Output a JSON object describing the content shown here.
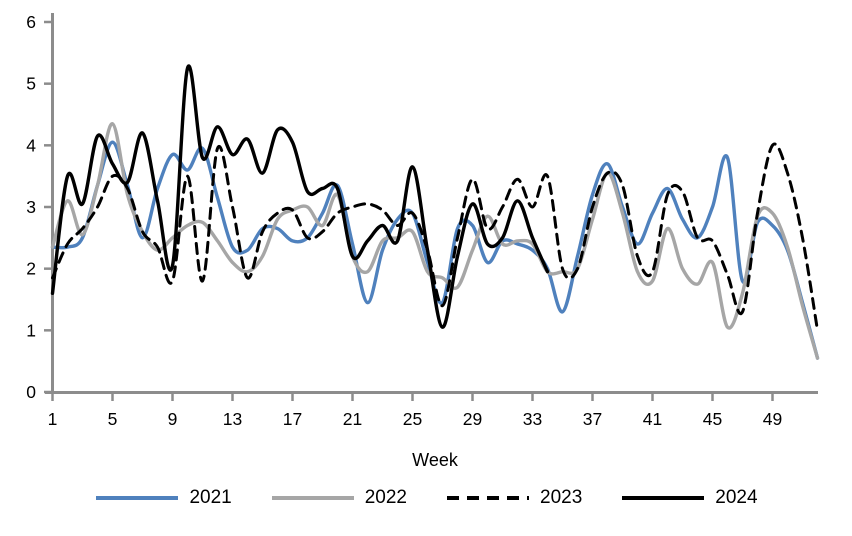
{
  "chart_data": {
    "type": "line",
    "title": "",
    "xlabel": "Week",
    "ylabel": "",
    "xlim": [
      1,
      52
    ],
    "ylim": [
      0,
      6
    ],
    "x_ticks": [
      1,
      5,
      9,
      13,
      17,
      21,
      25,
      29,
      33,
      37,
      41,
      45,
      49
    ],
    "y_ticks": [
      0,
      1,
      2,
      3,
      4,
      5,
      6
    ],
    "grid": false,
    "smoothed": true,
    "legend_position": "bottom",
    "axis_color": "#8c8c8c",
    "series": [
      {
        "name": "2021",
        "color": "#4f81bd",
        "style": "solid",
        "start_week": 1,
        "values": [
          2.35,
          2.35,
          2.5,
          3.35,
          4.05,
          3.35,
          2.5,
          3.3,
          3.85,
          3.6,
          3.95,
          3.15,
          2.35,
          2.3,
          2.65,
          2.65,
          2.45,
          2.5,
          2.9,
          3.35,
          2.4,
          1.45,
          2.3,
          2.8,
          2.9,
          2.1,
          1.45,
          2.65,
          2.7,
          2.1,
          2.45,
          2.4,
          2.3,
          2.0,
          1.3,
          2.2,
          3.2,
          3.7,
          3.0,
          2.4,
          2.9,
          3.3,
          2.8,
          2.5,
          3.0,
          3.8,
          1.8,
          2.75,
          2.7,
          2.3,
          1.45,
          0.55
        ]
      },
      {
        "name": "2022",
        "color": "#a6a6a6",
        "style": "solid",
        "start_week": 1,
        "values": [
          2.35,
          3.1,
          2.55,
          3.35,
          4.35,
          3.2,
          2.6,
          2.3,
          2.5,
          2.7,
          2.75,
          2.45,
          2.1,
          1.95,
          2.2,
          2.8,
          2.95,
          3.0,
          2.7,
          3.2,
          2.2,
          1.95,
          2.45,
          2.5,
          2.6,
          1.95,
          1.85,
          1.7,
          2.3,
          2.85,
          2.4,
          2.45,
          2.4,
          1.95,
          1.95,
          2.0,
          2.8,
          3.55,
          2.9,
          1.95,
          1.8,
          2.65,
          2.0,
          1.75,
          2.1,
          1.05,
          1.6,
          2.85,
          2.9,
          2.35,
          1.4,
          0.55
        ]
      },
      {
        "name": "2023",
        "color": "#000000",
        "style": "dashed",
        "start_week": 1,
        "values": [
          1.85,
          2.4,
          2.65,
          3.0,
          3.5,
          3.3,
          2.6,
          2.35,
          1.8,
          3.5,
          1.8,
          3.95,
          3.0,
          1.85,
          2.6,
          2.9,
          2.95,
          2.5,
          2.6,
          2.9,
          3.0,
          3.05,
          2.95,
          2.7,
          2.9,
          2.3,
          1.4,
          2.5,
          3.45,
          2.65,
          3.0,
          3.45,
          3.0,
          3.5,
          2.0,
          2.0,
          3.0,
          3.55,
          3.35,
          2.2,
          1.95,
          3.2,
          3.25,
          2.5,
          2.45,
          1.9,
          1.3,
          2.9,
          4.0,
          3.55,
          2.5,
          1.0
        ]
      },
      {
        "name": "2024",
        "color": "#000000",
        "style": "solid",
        "start_week": 1,
        "values": [
          1.6,
          3.5,
          3.05,
          4.15,
          3.7,
          3.4,
          4.2,
          3.1,
          2.05,
          5.25,
          3.8,
          4.3,
          3.85,
          4.1,
          3.55,
          4.25,
          4.05,
          3.25,
          3.3,
          3.3,
          2.2,
          2.45,
          2.7,
          2.45,
          3.65,
          2.3,
          1.05,
          2.2,
          3.05,
          2.4,
          2.5,
          3.1,
          2.5,
          1.95
        ]
      }
    ]
  }
}
